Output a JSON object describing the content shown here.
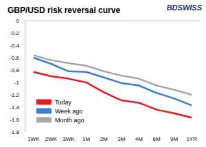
{
  "chart_data": {
    "type": "line",
    "title": "GBP/USD risk reversal curve",
    "annotations": [
      "BDSWISS"
    ],
    "categories": [
      "1WK",
      "2WK",
      "3WK",
      "1M",
      "2M",
      "3M",
      "4M",
      "6M",
      "9M",
      "1YR"
    ],
    "series": [
      {
        "name": "Today",
        "color": "#e3191c",
        "values": [
          -0.83,
          -0.9,
          -0.94,
          -1.0,
          -1.16,
          -1.29,
          -1.33,
          -1.44,
          -1.5,
          -1.57
        ]
      },
      {
        "name": "Week ago",
        "color": "#3a7be0",
        "values": [
          -0.6,
          -0.7,
          -0.82,
          -0.83,
          -0.92,
          -1.01,
          -1.05,
          -1.17,
          -1.26,
          -1.37
        ]
      },
      {
        "name": "Month ago",
        "color": "#a6a6a6",
        "values": [
          -0.56,
          -0.64,
          -0.69,
          -0.73,
          -0.82,
          -0.89,
          -0.94,
          -1.05,
          -1.12,
          -1.2
        ]
      }
    ],
    "ylim": [
      -1.8,
      0
    ],
    "yticks": [
      -1.8,
      -1.6,
      -1.4,
      -1.2,
      -1,
      -0.8,
      -0.6,
      -0.4,
      -0.2,
      0
    ],
    "grid": false,
    "legend": "lower left"
  }
}
